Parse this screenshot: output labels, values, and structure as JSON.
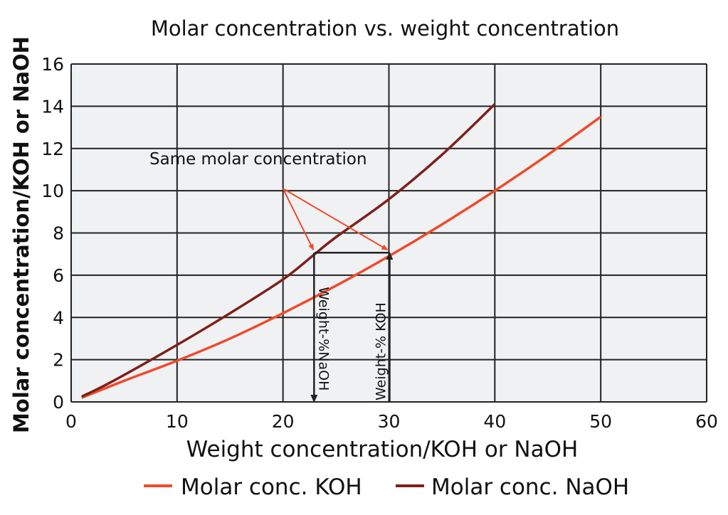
{
  "chart_data": {
    "type": "line",
    "title": "Molar concentration vs. weight concentration",
    "xlabel": "Weight concentration/KOH or NaOH",
    "ylabel": "Molar concentration/KOH or NaOH",
    "xlim": [
      0,
      60
    ],
    "ylim": [
      0,
      16
    ],
    "xticks": [
      0,
      10,
      20,
      30,
      40,
      50,
      60
    ],
    "yticks": [
      0,
      2,
      4,
      6,
      8,
      10,
      12,
      14,
      16
    ],
    "grid": true,
    "legend_position": "bottom",
    "series": [
      {
        "name": "Molar conc. KOH",
        "color": "#f04a2c",
        "x": [
          1,
          5,
          10,
          15,
          20,
          25,
          30,
          35,
          40,
          45,
          50
        ],
        "y": [
          0.2,
          1.0,
          1.95,
          3.0,
          4.2,
          5.5,
          6.9,
          8.4,
          10.0,
          11.7,
          13.5
        ]
      },
      {
        "name": "Molar conc. NaOH",
        "color": "#7e1f1a",
        "x": [
          1,
          4,
          10,
          15,
          20,
          23,
          25,
          30,
          35,
          40
        ],
        "y": [
          0.25,
          1.0,
          2.7,
          4.2,
          5.8,
          7.0,
          7.8,
          9.6,
          11.7,
          14.1
        ]
      }
    ],
    "annotations": {
      "same_molar": "Same molar concentration",
      "weight_naoh": "Weight-%NaOH",
      "weight_koh": "Weight-% KOH",
      "arrow_origin": [
        20,
        10.1
      ],
      "molar_level": 7,
      "naoh_point": 23,
      "koh_point": 30
    }
  }
}
